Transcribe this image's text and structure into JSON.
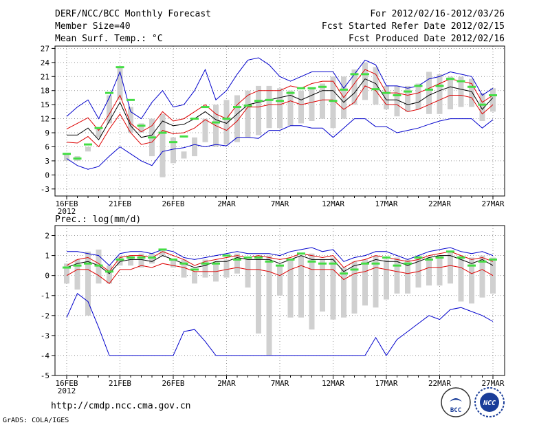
{
  "header": {
    "title": "DERF/NCC/BCC Monthly Forecast",
    "member_size": "Member Size=40",
    "variable": "Mean Surf. Temp.: °C",
    "forecast_range": "For 2012/02/16-2012/03/26",
    "fcst_started": "Fcst Started Refer Date 2012/02/15",
    "fcst_produced": "Fcst Produced Date 2012/02/16"
  },
  "footer": {
    "url": "http://cmdp.ncc.cma.gov.cn",
    "grads": "GrADS: COLA/IGES",
    "logo_bcc": "BCC",
    "logo_ncc": "NCC"
  },
  "colors": {
    "envelope": "#0000cc",
    "spread": "#dd0000",
    "mean": "#000000",
    "bar": "#d0d0d0",
    "marker": "#44dd44"
  },
  "chart_data": [
    {
      "type": "line",
      "title": "Mean Surf. Temp.: °C",
      "x_tick_labels": [
        "16FEB",
        "21FEB",
        "26FEB",
        "2MAR",
        "7MAR",
        "12MAR",
        "17MAR",
        "22MAR",
        "27MAR"
      ],
      "x_sublabel": "2012",
      "y_ticks": [
        -3,
        0,
        3,
        6,
        9,
        12,
        15,
        18,
        21,
        24,
        27
      ],
      "ylim": [
        -4.5,
        27.5
      ],
      "days": 41,
      "series": [
        {
          "name": "max",
          "values": [
            12.5,
            14.5,
            16,
            12,
            16.5,
            22,
            13.5,
            12,
            15.5,
            18,
            14.5,
            15,
            18,
            22.5,
            16,
            18,
            21.5,
            24.5,
            25,
            23.5,
            21,
            20,
            21,
            22,
            22,
            22,
            18.5,
            21.5,
            24.5,
            23.5,
            19,
            19,
            18.5,
            19,
            20.5,
            21,
            22,
            21.5,
            21,
            17,
            18.5
          ]
        },
        {
          "name": "upper",
          "values": [
            9.8,
            11,
            12.2,
            9.5,
            13,
            17,
            11,
            9.2,
            10.5,
            13.5,
            11.5,
            12,
            13.5,
            15,
            13,
            12,
            15,
            17,
            18,
            18,
            18,
            19,
            18.5,
            19.5,
            20,
            20,
            16.5,
            19.5,
            22.5,
            21.5,
            17.5,
            17.5,
            17,
            17.5,
            18.5,
            19.5,
            20.5,
            20,
            19.5,
            15.5,
            17
          ]
        },
        {
          "name": "mean",
          "values": [
            8.5,
            8.5,
            10,
            7.5,
            11.5,
            15.5,
            10.5,
            8,
            8.5,
            11.5,
            10.5,
            10.8,
            12,
            13.5,
            11.8,
            11,
            13,
            15,
            15.5,
            16,
            16.5,
            17,
            16,
            17,
            18,
            18,
            15.5,
            17.5,
            20.5,
            19.5,
            16,
            16,
            15,
            15.5,
            17,
            18,
            18.8,
            18.3,
            17.8,
            14,
            16.5
          ]
        },
        {
          "name": "lower",
          "values": [
            7,
            6.8,
            8.2,
            6,
            9.8,
            13,
            9,
            6.5,
            7,
            9.5,
            8.8,
            9,
            10,
            11.8,
            10.5,
            9.5,
            11.5,
            14.5,
            14.5,
            15,
            15,
            15.8,
            15,
            15.5,
            16,
            16,
            14,
            15.5,
            19,
            18,
            15,
            15,
            13.5,
            14,
            15,
            16,
            17,
            17,
            16.5,
            13,
            15
          ]
        },
        {
          "name": "min",
          "values": [
            3.5,
            2,
            1.2,
            1.8,
            4,
            6,
            4.5,
            3,
            2,
            5,
            5.5,
            5.8,
            6.5,
            6,
            6.5,
            6.2,
            8,
            8,
            7.8,
            9.5,
            9.5,
            10.5,
            10.5,
            10,
            10,
            8,
            10,
            12,
            12,
            10.3,
            10.3,
            9,
            9.5,
            10,
            10.8,
            11.5,
            12,
            12,
            12,
            10,
            11.8
          ]
        },
        {
          "name": "bar_top",
          "values": [
            4.5,
            4,
            6,
            10,
            17,
            23,
            14.5,
            11,
            12,
            13,
            8,
            5,
            8,
            12,
            15,
            16,
            17,
            18,
            19,
            19,
            18.5,
            18,
            18,
            18.5,
            19.5,
            21,
            21,
            22.5,
            24,
            23,
            19,
            19,
            19,
            19.5,
            22,
            21.5,
            21,
            21,
            20.5,
            17.5,
            18.5
          ]
        },
        {
          "name": "bar_bottom",
          "values": [
            3,
            3,
            5,
            8,
            11,
            16,
            9,
            9,
            4,
            -0.5,
            2.5,
            3.5,
            4,
            7,
            6,
            6.5,
            7,
            8,
            8.5,
            10,
            10,
            10.5,
            11,
            11.5,
            12,
            10,
            12,
            15,
            16,
            15,
            14,
            12.5,
            13.5,
            14,
            13,
            13,
            14,
            14.5,
            14.5,
            11.5,
            13.5
          ]
        },
        {
          "name": "marker",
          "values": [
            4.5,
            3.5,
            6.5,
            10,
            17.5,
            23,
            16,
            10.5,
            8,
            9,
            7,
            8.2,
            12,
            14.5,
            11.2,
            12,
            14.5,
            14.8,
            15.8,
            16,
            15.8,
            17.5,
            18.5,
            18.5,
            18.8,
            15.8,
            18.2,
            21.5,
            21.5,
            18.3,
            17.5,
            17,
            17.8,
            19,
            18.2,
            19,
            20.5,
            20,
            18.8,
            15,
            17
          ]
        }
      ]
    },
    {
      "type": "line",
      "title": "Prec.: log(mm/d)",
      "x_tick_labels": [
        "16FEB",
        "21FEB",
        "26FEB",
        "2MAR",
        "7MAR",
        "12MAR",
        "17MAR",
        "22MAR",
        "27MAR"
      ],
      "x_sublabel": "2012",
      "y_ticks": [
        -5,
        -4,
        -3,
        -2,
        -1,
        0,
        1,
        2
      ],
      "ylim": [
        -5,
        2.5
      ],
      "days": 41,
      "series": [
        {
          "name": "max",
          "values": [
            1.2,
            1.2,
            1.1,
            1,
            0.5,
            1.1,
            1.2,
            1.2,
            1.1,
            1.3,
            1.2,
            0.9,
            0.8,
            0.9,
            1,
            1.1,
            1.2,
            1.1,
            1.1,
            1.1,
            1,
            1.2,
            1.3,
            1.4,
            1.2,
            1.3,
            0.7,
            0.9,
            1,
            1.2,
            1.2,
            1,
            0.8,
            1,
            1.2,
            1.3,
            1.4,
            1.2,
            1.1,
            1.2,
            1
          ]
        },
        {
          "name": "upper",
          "values": [
            0.5,
            0.8,
            0.9,
            0.6,
            0.2,
            0.9,
            1,
            1,
            0.9,
            1.2,
            1,
            0.8,
            0.5,
            0.7,
            0.8,
            0.9,
            1,
            0.9,
            1,
            0.9,
            0.8,
            0.9,
            1.1,
            1,
            0.9,
            1,
            0.4,
            0.7,
            0.8,
            1,
            0.9,
            0.8,
            0.7,
            0.8,
            1,
            1.1,
            1.2,
            1,
            0.8,
            0.9,
            0.7
          ]
        },
        {
          "name": "mean",
          "values": [
            0.4,
            0.6,
            0.7,
            0.5,
            0.1,
            0.7,
            0.8,
            0.8,
            0.7,
            1,
            0.8,
            0.6,
            0.4,
            0.5,
            0.7,
            0.7,
            0.9,
            0.8,
            0.8,
            0.8,
            0.6,
            0.8,
            1,
            0.8,
            0.8,
            0.8,
            0.2,
            0.5,
            0.6,
            0.8,
            0.7,
            0.7,
            0.5,
            0.7,
            0.9,
            1,
            1,
            0.8,
            0.6,
            0.8,
            0.5
          ]
        },
        {
          "name": "lower",
          "values": [
            0,
            0.3,
            0.3,
            0,
            -0.4,
            0.3,
            0.3,
            0.5,
            0.4,
            0.6,
            0.5,
            0.4,
            0.2,
            0.2,
            0.2,
            0.3,
            0.4,
            0.3,
            0.3,
            0.2,
            0,
            0.3,
            0.5,
            0.3,
            0.3,
            0.3,
            -0.2,
            0.1,
            0.2,
            0.4,
            0.3,
            0.2,
            0.1,
            0.2,
            0.4,
            0.4,
            0.5,
            0.4,
            0.1,
            0.3,
            0
          ]
        },
        {
          "name": "min",
          "values": [
            -2.1,
            -0.9,
            -1.3,
            -2.6,
            -4,
            -4,
            -4,
            -4,
            -4,
            -4,
            -4,
            -2.8,
            -2.7,
            -3.3,
            -4,
            -4,
            -4,
            -4,
            -4,
            -4,
            -4,
            -4,
            -4,
            -4,
            -4,
            -4,
            -4,
            -4,
            -4,
            -3.1,
            -4,
            -3.2,
            -2.8,
            -2.4,
            -2,
            -2.2,
            -1.7,
            -1.6,
            -1.8,
            -2,
            -2.3
          ]
        },
        {
          "name": "bar_top",
          "values": [
            0.6,
            0.8,
            1.2,
            1.3,
            0.5,
            1,
            1,
            1.1,
            1.1,
            1.3,
            0.8,
            0.8,
            0.2,
            0.8,
            0.7,
            0.8,
            1.1,
            0.8,
            1,
            1,
            0.5,
            0.8,
            1,
            1.1,
            0.8,
            0.9,
            0.4,
            0.7,
            0.8,
            1,
            0.8,
            0.9,
            0.8,
            1,
            0.9,
            1,
            1.2,
            1,
            0.9,
            1,
            0.9
          ]
        },
        {
          "name": "bar_bottom",
          "values": [
            -0.4,
            -0.7,
            -2,
            -0.4,
            -0.4,
            0.5,
            0.5,
            0.4,
            0.6,
            1,
            0.4,
            -0.1,
            -0.4,
            -0.1,
            -0.3,
            -0.1,
            0.1,
            -0.6,
            -2.9,
            -4,
            -1,
            -2.1,
            -2.1,
            -2.7,
            -1.8,
            -2.2,
            -2.1,
            -1.9,
            -1.5,
            -1.6,
            -1.2,
            -0.9,
            -0.9,
            -0.6,
            -0.5,
            -0.5,
            -0.4,
            -1.3,
            -1.4,
            -1.1,
            -0.9
          ]
        },
        {
          "name": "marker",
          "values": [
            0.4,
            0.5,
            0.6,
            0.5,
            0.2,
            0.8,
            0.9,
            0.9,
            0.9,
            1.3,
            0.8,
            0.6,
            0.3,
            0.6,
            0.6,
            1,
            0.8,
            0.9,
            0.9,
            0.7,
            0.5,
            0.8,
            1.1,
            0.7,
            0.6,
            0.6,
            0.1,
            0.3,
            0.6,
            0.6,
            0.9,
            0.5,
            0.6,
            0.9,
            0.8,
            0.9,
            1.2,
            0.9,
            0.5,
            0.7,
            0.8
          ]
        }
      ]
    }
  ]
}
